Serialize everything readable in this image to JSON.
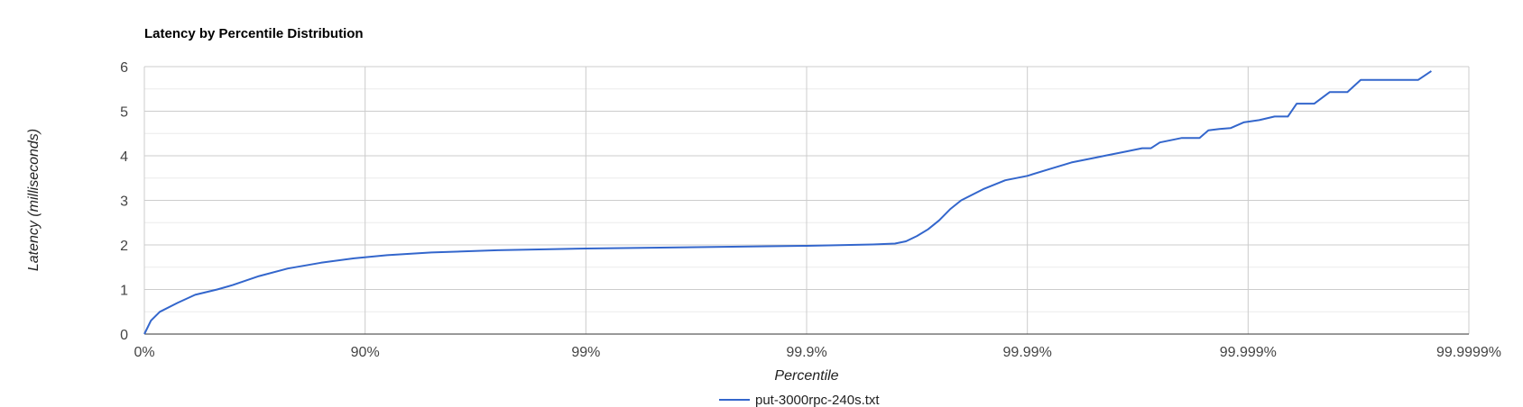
{
  "chart_data": {
    "type": "line",
    "title": "Latency by Percentile Distribution",
    "xlabel": "Percentile",
    "ylabel": "Latency (milliseconds)",
    "x_scale": "log_nines",
    "x_ticks": [
      "0%",
      "90%",
      "99%",
      "99.9%",
      "99.99%",
      "99.999%",
      "99.9999%"
    ],
    "xlim": [
      0,
      6
    ],
    "ylim": [
      0,
      6
    ],
    "y_ticks": [
      0,
      1,
      2,
      3,
      4,
      5,
      6
    ],
    "grid": true,
    "legend_position": "bottom",
    "series": [
      {
        "name": "put-3000rpc-240s.txt",
        "color": "#3366cc",
        "points": [
          [
            0,
            0.0
          ],
          [
            0.03,
            0.3
          ],
          [
            0.07,
            0.5
          ],
          [
            0.15,
            0.7
          ],
          [
            0.23,
            0.88
          ],
          [
            0.33,
            1.0
          ],
          [
            0.4,
            1.1
          ],
          [
            0.52,
            1.3
          ],
          [
            0.65,
            1.47
          ],
          [
            0.8,
            1.6
          ],
          [
            0.95,
            1.7
          ],
          [
            1.1,
            1.77
          ],
          [
            1.3,
            1.83
          ],
          [
            1.6,
            1.88
          ],
          [
            2.0,
            1.92
          ],
          [
            2.5,
            1.95
          ],
          [
            3.0,
            1.98
          ],
          [
            3.3,
            2.01
          ],
          [
            3.4,
            2.03
          ],
          [
            3.45,
            2.08
          ],
          [
            3.5,
            2.2
          ],
          [
            3.55,
            2.35
          ],
          [
            3.6,
            2.55
          ],
          [
            3.65,
            2.8
          ],
          [
            3.7,
            3.0
          ],
          [
            3.8,
            3.25
          ],
          [
            3.9,
            3.45
          ],
          [
            4.0,
            3.55
          ],
          [
            4.1,
            3.7
          ],
          [
            4.2,
            3.85
          ],
          [
            4.3,
            3.95
          ],
          [
            4.35,
            4.0
          ],
          [
            4.45,
            4.1
          ],
          [
            4.52,
            4.17
          ],
          [
            4.56,
            4.17
          ],
          [
            4.6,
            4.3
          ],
          [
            4.7,
            4.4
          ],
          [
            4.78,
            4.4
          ],
          [
            4.82,
            4.57
          ],
          [
            4.87,
            4.6
          ],
          [
            4.92,
            4.62
          ],
          [
            4.98,
            4.75
          ],
          [
            5.05,
            4.8
          ],
          [
            5.12,
            4.88
          ],
          [
            5.18,
            4.88
          ],
          [
            5.22,
            5.17
          ],
          [
            5.3,
            5.17
          ],
          [
            5.37,
            5.43
          ],
          [
            5.45,
            5.43
          ],
          [
            5.51,
            5.7
          ],
          [
            5.77,
            5.7
          ],
          [
            5.83,
            5.9
          ]
        ]
      }
    ]
  }
}
